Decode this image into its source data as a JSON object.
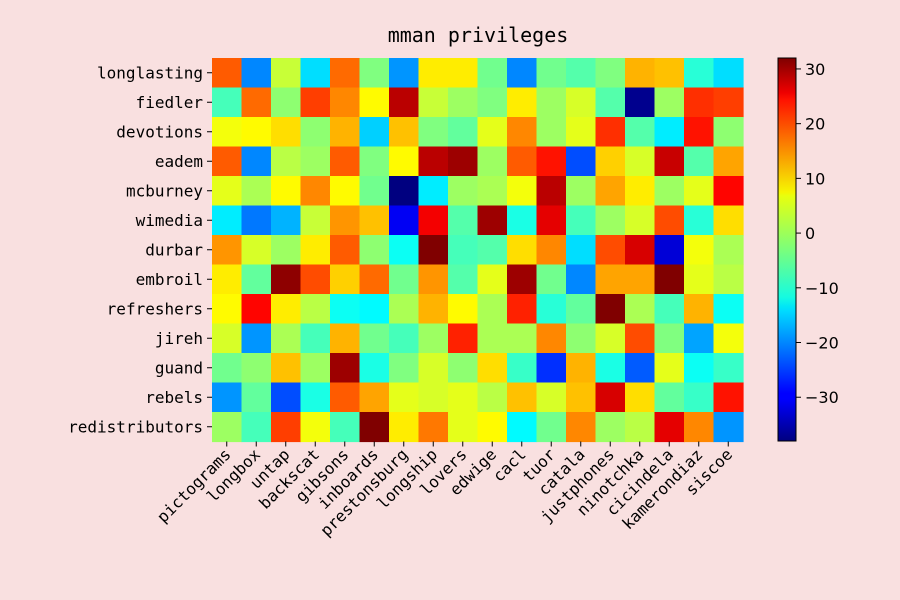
{
  "chart_data": {
    "type": "heatmap",
    "title": "mman privileges",
    "xlabel": "",
    "ylabel": "",
    "colormap": "jet",
    "vmin": -38,
    "vmax": 32,
    "colorbar_ticks": [
      30,
      20,
      10,
      0,
      -10,
      -20,
      -30
    ],
    "colorbar_tick_labels": [
      "30",
      "20",
      "10",
      "0",
      "−10",
      "−20",
      "−30"
    ],
    "x_categories": [
      "pictograms",
      "longbox",
      "untap",
      "backscat",
      "gibsons",
      "inboards",
      "prestonsburg",
      "longship",
      "lovers",
      "edwige",
      "cacl",
      "tuor",
      "catala",
      "justphones",
      "ninotchka",
      "cicindela",
      "kamerondiaz",
      "siscoe"
    ],
    "y_categories": [
      "longlasting",
      "fiedler",
      "devotions",
      "eadem",
      "mcburney",
      "wimedia",
      "durbar",
      "embroil",
      "refreshers",
      "jireh",
      "guand",
      "rebels",
      "redistributors"
    ],
    "values": [
      [
        17,
        -20,
        2,
        -14,
        16,
        -3,
        -19,
        7,
        7,
        -4,
        -20,
        -4,
        -6,
        -3,
        11,
        10,
        -9,
        -14
      ],
      [
        -7,
        16,
        -2,
        19,
        14,
        6,
        28,
        2,
        -1,
        -3,
        7,
        -1,
        3,
        -6,
        -37,
        -1,
        20,
        19
      ],
      [
        5,
        6,
        8,
        -2,
        11,
        -15,
        10,
        -3,
        -5,
        4,
        14,
        -1,
        4,
        20,
        -6,
        -13,
        22,
        -2
      ],
      [
        17,
        -20,
        1,
        -1,
        17,
        -3,
        6,
        28,
        30,
        -1,
        17,
        22,
        -24,
        9,
        3,
        27,
        -6,
        12
      ],
      [
        4,
        0,
        6,
        14,
        6,
        -4,
        -38,
        -13,
        -1,
        0,
        5,
        28,
        -1,
        12,
        7,
        -1,
        4,
        23
      ],
      [
        -13,
        -21,
        -17,
        2,
        13,
        10,
        -30,
        24,
        -6,
        30,
        -10,
        25,
        -7,
        -1,
        3,
        18,
        -9,
        8
      ],
      [
        13,
        3,
        -1,
        7,
        17,
        -2,
        -11,
        33,
        -7,
        -6,
        8,
        14,
        -14,
        18,
        26,
        -32,
        5,
        0
      ],
      [
        7,
        -5,
        31,
        18,
        9,
        16,
        -4,
        13,
        -6,
        4,
        30,
        -4,
        -20,
        12,
        12,
        33,
        4,
        1
      ],
      [
        6,
        23,
        7,
        1,
        -11,
        -12,
        0,
        11,
        6,
        0,
        21,
        -9,
        -5,
        32,
        0,
        -7,
        11,
        -11
      ],
      [
        3,
        -19,
        0,
        -7,
        11,
        -4,
        -7,
        -1,
        21,
        0,
        0,
        14,
        -2,
        3,
        18,
        -3,
        -18,
        5
      ],
      [
        -4,
        -2,
        10,
        -1,
        30,
        -10,
        -3,
        3,
        -2,
        8,
        -8,
        -26,
        11,
        -10,
        -23,
        4,
        -11,
        -8
      ],
      [
        -19,
        -5,
        -24,
        -10,
        17,
        12,
        4,
        3,
        4,
        1,
        10,
        3,
        10,
        26,
        8,
        -5,
        -8,
        22
      ],
      [
        -1,
        -7,
        19,
        5,
        -7,
        34,
        7,
        15,
        4,
        6,
        -12,
        -4,
        14,
        -1,
        1,
        25,
        14,
        -19
      ]
    ]
  }
}
